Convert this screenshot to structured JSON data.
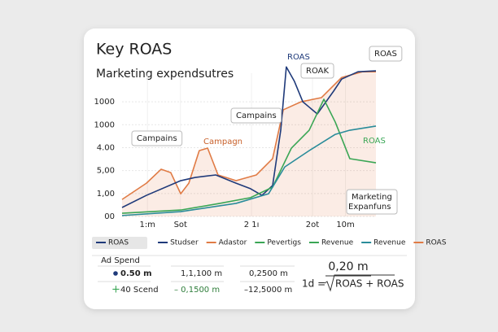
{
  "chart_data": {
    "type": "line",
    "title": "Key ROAS",
    "subtitle": "Marketing expendsutres",
    "xlim": [
      0,
      10
    ],
    "xticks": [
      {
        "value": 1,
        "label": "1:m"
      },
      {
        "value": 2.3,
        "label": "Sot"
      },
      {
        "value": 5.1,
        "label": "2 1ı"
      },
      {
        "value": 7.5,
        "label": "2ot"
      },
      {
        "value": 8.8,
        "label": "10m"
      }
    ],
    "ylim": [
      0,
      6.6
    ],
    "yticks": [
      {
        "value": 0,
        "label": "00"
      },
      {
        "value": 1,
        "label": "1,00"
      },
      {
        "value": 2,
        "label": "5,00"
      },
      {
        "value": 3,
        "label": "4.00"
      },
      {
        "value": 4,
        "label": "1000"
      },
      {
        "value": 5,
        "label": "1000"
      }
    ],
    "grid": true,
    "series": [
      {
        "color": "#e07b45",
        "area": true,
        "x": [
          0,
          0.96,
          1.54,
          1.92,
          2.31,
          2.63,
          3.04,
          3.37,
          3.78,
          4.49,
          5.29,
          5.93,
          6.35,
          7.05,
          7.85,
          8.65,
          9.46,
          10
        ],
        "values": [
          0.74,
          1.45,
          2.06,
          1.91,
          0.99,
          1.45,
          2.87,
          2.98,
          1.81,
          1.56,
          1.81,
          2.52,
          4.65,
          5.0,
          5.18,
          6.06,
          6.31,
          6.31
        ]
      },
      {
        "color": "#1f3a7a",
        "x": [
          0,
          0.96,
          2.31,
          2.88,
          3.69,
          4.49,
          5.06,
          5.51,
          5.93,
          6.25,
          6.47,
          6.79,
          7.12,
          7.69,
          8.33,
          8.65,
          9.29,
          10
        ],
        "values": [
          0.39,
          0.92,
          1.56,
          1.7,
          1.81,
          1.45,
          1.21,
          0.92,
          1.35,
          3.76,
          6.52,
          5.89,
          5.0,
          4.47,
          5.46,
          5.99,
          6.31,
          6.35
        ]
      },
      {
        "color": "#3aa655",
        "x": [
          0,
          2.31,
          3.85,
          5.06,
          5.93,
          6.67,
          7.37,
          7.95,
          8.4,
          8.97,
          10
        ],
        "values": [
          0.14,
          0.28,
          0.57,
          0.82,
          1.28,
          2.98,
          3.76,
          5.11,
          4.11,
          2.52,
          2.34
        ]
      },
      {
        "color": "#2a8c9a",
        "x": [
          0,
          2.31,
          4.49,
          5.77,
          6.41,
          7.37,
          8.4,
          8.97,
          10
        ],
        "values": [
          0.04,
          0.21,
          0.57,
          0.99,
          2.16,
          2.87,
          3.58,
          3.76,
          3.94
        ]
      }
    ],
    "annotations": [
      {
        "text": "ROAS",
        "color": "#1f3a7a",
        "boxed": false
      },
      {
        "text": "ROAK",
        "color": "#222222",
        "boxed": true
      },
      {
        "text": "ROAS",
        "color": "#222222",
        "boxed": true
      },
      {
        "text": "Campains",
        "color": "#222222",
        "boxed": true
      },
      {
        "text": "Campains",
        "color": "#222222",
        "boxed": true
      },
      {
        "text": "Campagn",
        "color": "#c8602a",
        "boxed": false
      },
      {
        "text": "ROAS",
        "color": "#3aa655",
        "boxed": false
      },
      {
        "text": "Marketing",
        "color": "#222222",
        "boxed": true
      },
      {
        "text": "Expanfuns",
        "color": "#222222",
        "boxed": false
      }
    ],
    "legend": [
      {
        "name": "ROAS",
        "color": "#1f3a7a"
      },
      {
        "name": "Studser",
        "color": "#1f3a7a"
      },
      {
        "name": "Adastor",
        "color": "#e07b45"
      },
      {
        "name": "Pevertigs",
        "color": "#3aa655"
      },
      {
        "name": "Revenue",
        "color": "#3aa655"
      },
      {
        "name": "Revenue",
        "color": "#2a8c9a"
      },
      {
        "name": "ROAS",
        "color": "#e07b45"
      }
    ]
  },
  "summary": {
    "header": "Ad Spend",
    "rows": [
      [
        "0.50 m",
        "1,1,100 m",
        "0,2500 m"
      ],
      [
        "40 Scend",
        "– 0,1500 m",
        "–12,5000 m"
      ]
    ]
  },
  "formula": {
    "numerator": "0,20 m",
    "lhs": "1d =",
    "radicand": "ROAS + ROAS"
  }
}
